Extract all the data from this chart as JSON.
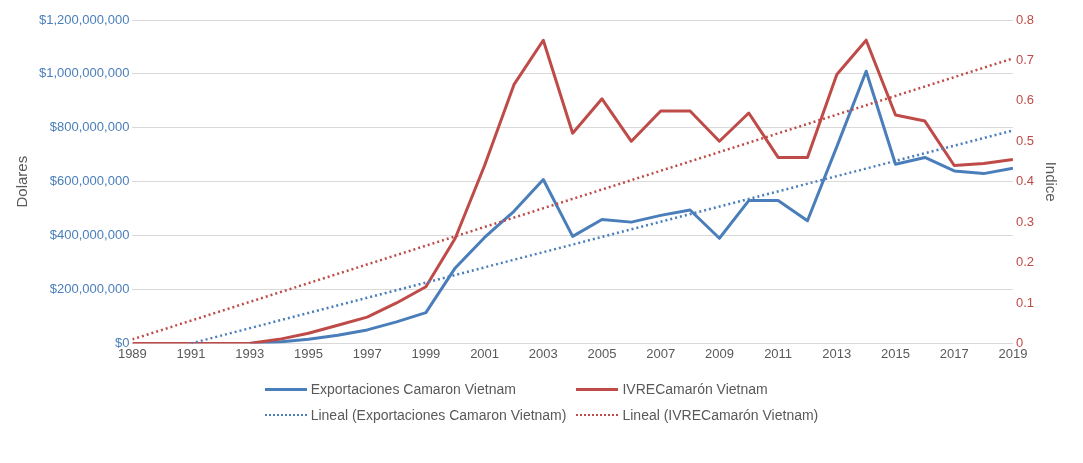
{
  "chart_data": {
    "type": "line",
    "ylabel": "Dolares",
    "y2label": "Indice",
    "xlim": [
      1989,
      2019
    ],
    "xticks": [
      1989,
      1991,
      1993,
      1995,
      1997,
      1999,
      2001,
      2003,
      2005,
      2007,
      2009,
      2011,
      2013,
      2015,
      2017,
      2019
    ],
    "ylim": [
      0,
      1200000000
    ],
    "yticks": [
      {
        "value": 0,
        "label": "$0"
      },
      {
        "value": 200000000,
        "label": "$200,000,000"
      },
      {
        "value": 400000000,
        "label": "$400,000,000"
      },
      {
        "value": 600000000,
        "label": "$600,000,000"
      },
      {
        "value": 800000000,
        "label": "$800,000,000"
      },
      {
        "value": 1000000000,
        "label": "$1,000,000,000"
      },
      {
        "value": 1200000000,
        "label": "$1,200,000,000"
      }
    ],
    "y2lim": [
      0,
      0.8
    ],
    "y2ticks": [
      0,
      0.1,
      0.2,
      0.3,
      0.4,
      0.5,
      0.6,
      0.7,
      0.8
    ],
    "grid": "y",
    "legend": "bottom",
    "marker": "none",
    "line_style": "solid",
    "x": [
      1989,
      1990,
      1991,
      1992,
      1993,
      1994,
      1995,
      1996,
      1997,
      1998,
      1999,
      2000,
      2001,
      2002,
      2003,
      2004,
      2005,
      2006,
      2007,
      2008,
      2009,
      2010,
      2011,
      2012,
      2013,
      2014,
      2015,
      2016,
      2017,
      2018,
      2019
    ],
    "series": [
      {
        "name": "Exportaciones Camaron Vietnam",
        "color": "#4a7ebb",
        "values": [
          null,
          null,
          null,
          null,
          0,
          5000000,
          15000000,
          30000000,
          50000000,
          80000000,
          114000000,
          280000000,
          393000000,
          490000000,
          608000000,
          397000000,
          460000000,
          450000000,
          475000000,
          495000000,
          390000000,
          530000000,
          530000000,
          455000000,
          730000000,
          1010000000,
          665000000,
          690000000,
          640000000,
          630000000,
          650000000
        ]
      },
      {
        "name": "IVRECamarón Vietnam",
        "color": "#be4b48",
        "axis": "y2",
        "values": [
          0,
          0,
          0,
          0,
          0,
          0.01,
          0.025,
          0.045,
          0.065,
          0.1,
          0.14,
          0.26,
          0.44,
          0.64,
          0.75,
          0.52,
          0.605,
          0.5,
          0.575,
          0.575,
          0.5,
          0.57,
          0.46,
          0.46,
          0.665,
          0.75,
          0.565,
          0.55,
          0.44,
          0.445,
          0.455
        ]
      },
      {
        "name": "Lineal (Exportaciones Camaron Vietnam)",
        "color": "#4a7ebb",
        "type": "line",
        "line_style": "dotted",
        "x": [
          1991,
          2019
        ],
        "values": [
          0,
          790000000
        ]
      },
      {
        "name": "Lineal (IVRECamarón Vietnam)",
        "color": "#be4b48",
        "type": "line",
        "line_style": "dotted",
        "axis": "y2",
        "x": [
          1989,
          2019
        ],
        "values": [
          0.01,
          0.705
        ]
      }
    ]
  }
}
